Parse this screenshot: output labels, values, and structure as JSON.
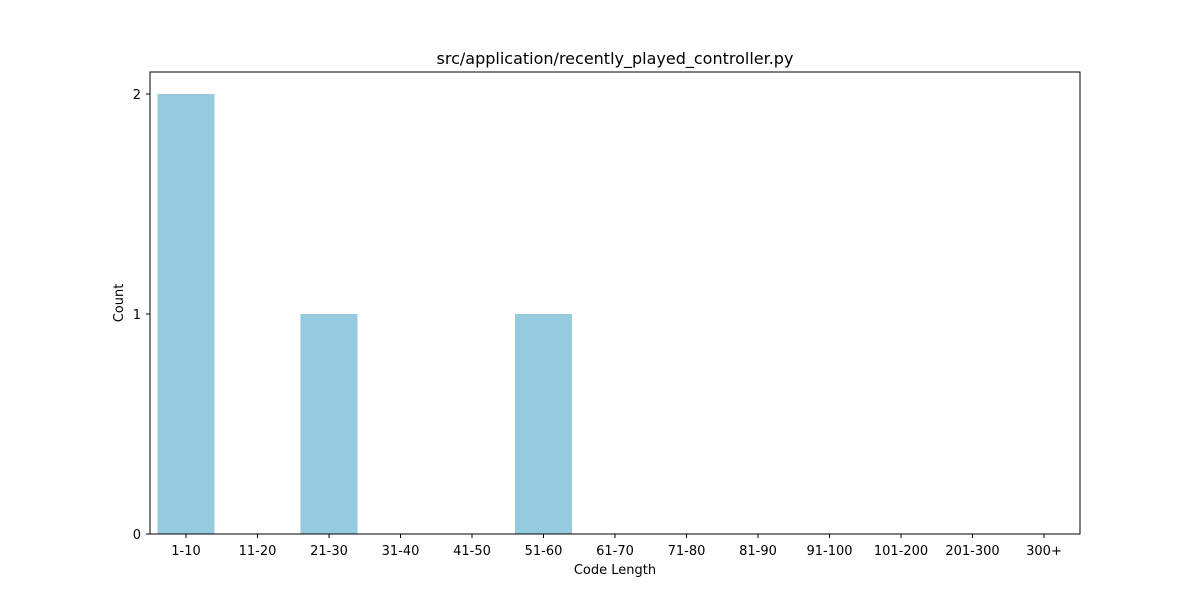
{
  "chart_data": {
    "type": "bar",
    "title": "src/application/recently_played_controller.py",
    "xlabel": "Code Length",
    "ylabel": "Count",
    "categories": [
      "1-10",
      "11-20",
      "21-30",
      "31-40",
      "41-50",
      "51-60",
      "61-70",
      "71-80",
      "81-90",
      "91-100",
      "101-200",
      "201-300",
      "300+"
    ],
    "values": [
      2,
      0,
      1,
      0,
      0,
      1,
      0,
      0,
      0,
      0,
      0,
      0,
      0
    ],
    "ylim": [
      0,
      2.1
    ],
    "yticks": [
      0,
      1,
      2
    ],
    "grid": false,
    "bar_color": "#96cadf"
  }
}
